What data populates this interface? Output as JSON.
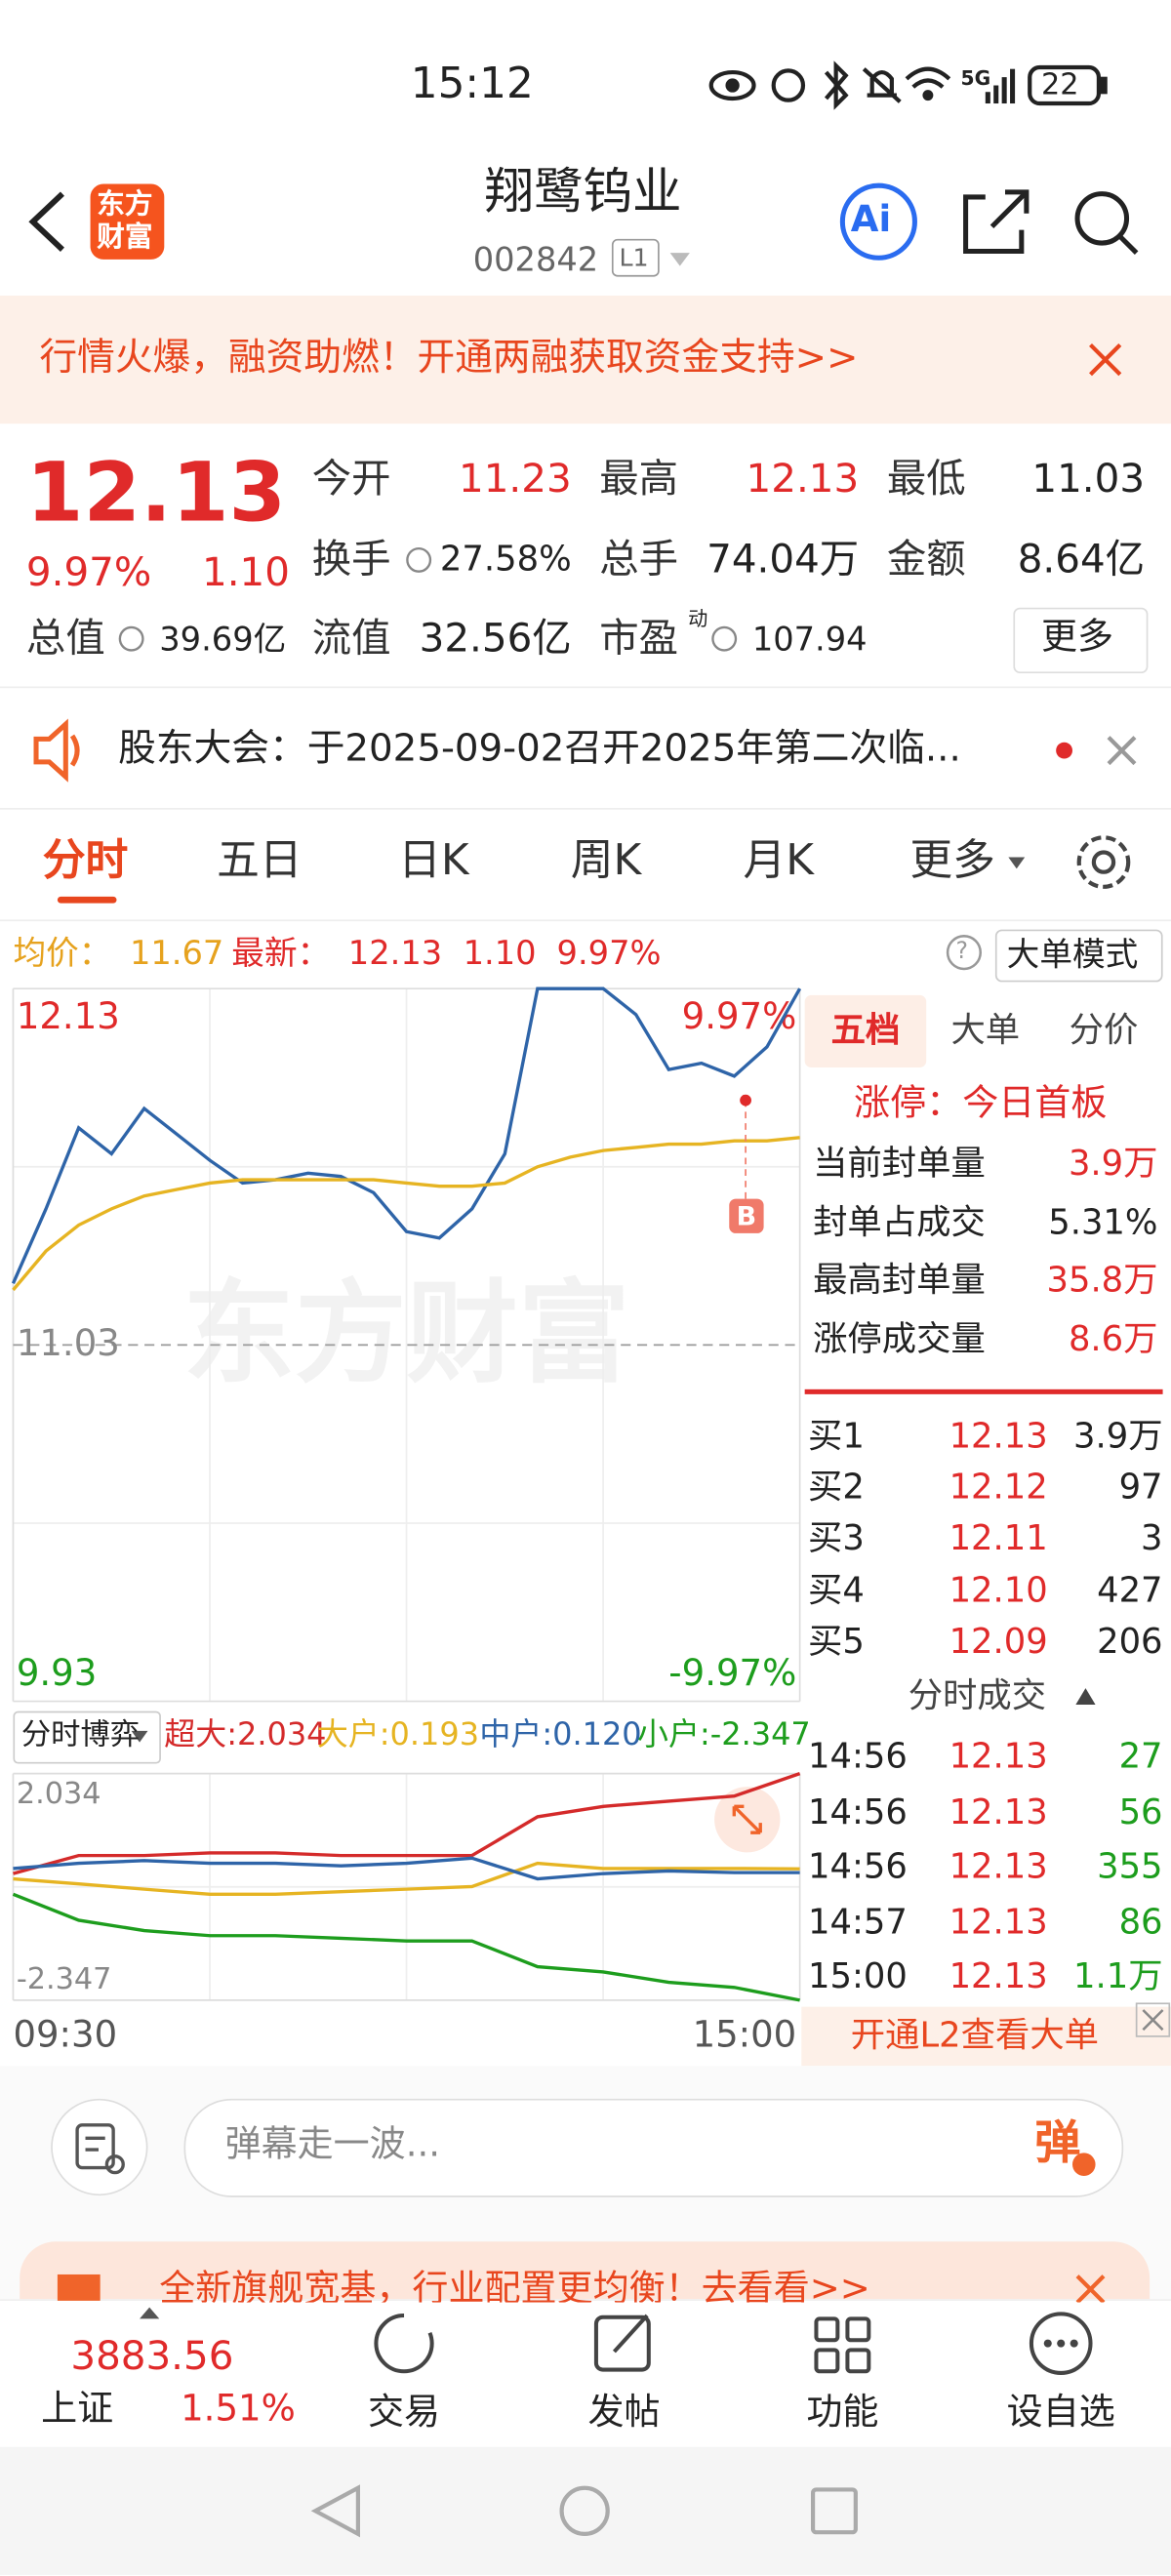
{
  "status": {
    "time": "15:12",
    "network": "5G",
    "battery": "22"
  },
  "header": {
    "logo": [
      "东方",
      "财富"
    ],
    "title": "翔鹭钨业",
    "code": "002842",
    "level": "L1",
    "ai": "Ai"
  },
  "banner": {
    "text": "行情火爆，融资助燃！开通两融获取资金支持>>"
  },
  "quote": {
    "price": "12.13",
    "change_pct": "9.97%",
    "change": "1.10",
    "more": "更多",
    "fields": [
      {
        "label": "今开",
        "value": "11.23"
      },
      {
        "label": "最高",
        "value": "12.13"
      },
      {
        "label": "最低",
        "value": "11.03"
      },
      {
        "label": "换手",
        "value": "27.58%"
      },
      {
        "label": "总手",
        "value": "74.04万"
      },
      {
        "label": "金额",
        "value": "8.64亿"
      },
      {
        "label": "总值",
        "value": "39.69亿"
      },
      {
        "label": "流值",
        "value": "32.56亿"
      },
      {
        "label": "市盈",
        "label_sup": "动",
        "value": "107.94"
      }
    ]
  },
  "notice": {
    "text": "股东大会：于2025-09-02召开2025年第二次临..."
  },
  "tabs": [
    "分时",
    "五日",
    "日K",
    "周K",
    "月K",
    "更多"
  ],
  "info": {
    "avg_label": "均价：",
    "avg": "11.67",
    "last_label": "最新：",
    "last": "12.13",
    "change": "1.10",
    "change_pct": "9.97%",
    "help": "?",
    "mode": "大单模式"
  },
  "chart_data": [
    {
      "type": "line",
      "ylim": [
        9.93,
        12.13
      ],
      "yticks": [
        12.13,
        11.03,
        9.93
      ],
      "y2lim": [
        -9.97,
        9.97
      ],
      "y2ticks": [
        {
          "value": 9.97,
          "label": "9.97%"
        },
        {
          "value": -9.97,
          "label": "-9.97%"
        }
      ],
      "x_labels": [
        "09:30",
        "15:00"
      ],
      "watermark": "东方财富",
      "marker": "B",
      "series": [
        {
          "color": "#2e64a8",
          "values": [
            11.22,
            11.45,
            11.7,
            11.62,
            11.76,
            11.68,
            11.6,
            11.53,
            11.54,
            11.56,
            11.55,
            11.5,
            11.38,
            11.36,
            11.45,
            11.62,
            12.13,
            12.13,
            12.13,
            12.05,
            11.88,
            11.9,
            11.86,
            11.95,
            12.13
          ]
        },
        {
          "color": "#e6b422",
          "values": [
            11.2,
            11.32,
            11.4,
            11.45,
            11.49,
            11.51,
            11.53,
            11.54,
            11.54,
            11.54,
            11.54,
            11.54,
            11.53,
            11.52,
            11.52,
            11.53,
            11.58,
            11.61,
            11.63,
            11.64,
            11.65,
            11.65,
            11.66,
            11.66,
            11.67
          ]
        }
      ]
    },
    {
      "type": "line",
      "selector": "分时博弈",
      "ylim": [
        -2.347,
        2.034
      ],
      "yticks": [
        2.034,
        -2.347
      ],
      "series": [
        {
          "name": "超大:2.034",
          "color": "#d42a2a",
          "values": [
            0.1,
            0.45,
            0.45,
            0.5,
            0.5,
            0.45,
            0.45,
            0.45,
            1.2,
            1.4,
            1.5,
            1.6,
            2.034
          ]
        },
        {
          "name": "大户:0.193",
          "color": "#e6b422",
          "values": [
            0.0,
            -0.1,
            -0.2,
            -0.3,
            -0.3,
            -0.25,
            -0.2,
            -0.15,
            0.3,
            0.2,
            0.2,
            0.2,
            0.193
          ]
        },
        {
          "name": "中户:0.120",
          "color": "#2e64a8",
          "values": [
            0.2,
            0.3,
            0.35,
            0.3,
            0.3,
            0.25,
            0.3,
            0.4,
            0.0,
            0.1,
            0.15,
            0.12,
            0.12
          ]
        },
        {
          "name": "小户:-2.347",
          "color": "#1d9d1d",
          "values": [
            -0.3,
            -0.8,
            -1.0,
            -1.1,
            -1.1,
            -1.15,
            -1.2,
            -1.2,
            -1.7,
            -1.8,
            -2.0,
            -2.1,
            -2.347
          ]
        }
      ]
    }
  ],
  "depth": {
    "tabs": [
      "五档",
      "大单",
      "分价"
    ],
    "limit_up": "涨停：今日首板",
    "stats": [
      {
        "label": "当前封单量",
        "value": "3.9万"
      },
      {
        "label": "封单占成交",
        "value": "5.31%"
      },
      {
        "label": "最高封单量",
        "value": "35.8万"
      },
      {
        "label": "涨停成交量",
        "value": "8.6万"
      }
    ],
    "bids": [
      {
        "label": "买1",
        "price": "12.13",
        "volume": "3.9万"
      },
      {
        "label": "买2",
        "price": "12.12",
        "volume": "97"
      },
      {
        "label": "买3",
        "price": "12.11",
        "volume": "3"
      },
      {
        "label": "买4",
        "price": "12.10",
        "volume": "427"
      },
      {
        "label": "买5",
        "price": "12.09",
        "volume": "206"
      }
    ],
    "trades_title": "分时成交",
    "trades": [
      {
        "time": "14:56",
        "price": "12.13",
        "volume": "27"
      },
      {
        "time": "14:56",
        "price": "12.13",
        "volume": "56"
      },
      {
        "time": "14:56",
        "price": "12.13",
        "volume": "355"
      },
      {
        "time": "14:57",
        "price": "12.13",
        "volume": "86"
      },
      {
        "time": "15:00",
        "price": "12.13",
        "volume": "1.1万"
      }
    ],
    "l2": "开通L2查看大单"
  },
  "comment": {
    "placeholder": "弹幕走一波...",
    "button": "弹"
  },
  "ad": {
    "text": "全新旗舰宽基，行业配置更均衡！去看看>>"
  },
  "bottom_nav": {
    "index_value": "3883.56",
    "index_name": "上证",
    "index_change": "1.51%",
    "items": [
      "交易",
      "发帖",
      "功能",
      "设自选"
    ]
  }
}
